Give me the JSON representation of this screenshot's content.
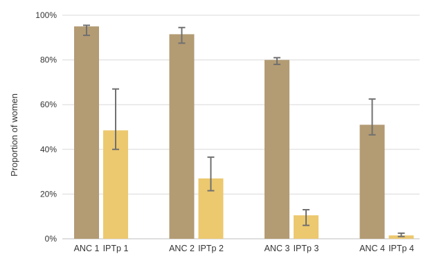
{
  "chart_data": {
    "type": "bar",
    "title": "",
    "xlabel": "",
    "ylabel": "Proportion of women",
    "ylim": [
      0,
      100
    ],
    "yticks": [
      0,
      20,
      40,
      60,
      80,
      100
    ],
    "ytick_labels": [
      "0%",
      "20%",
      "40%",
      "60%",
      "80%",
      "100%"
    ],
    "grid": true,
    "legend": "none",
    "bars": [
      {
        "label": "ANC 1",
        "value": 95,
        "err_low": 91,
        "err_high": 95.5,
        "color": "#b39b73"
      },
      {
        "label": "IPTp 1",
        "value": 48.5,
        "err_low": 40,
        "err_high": 67,
        "color": "#ecc86f"
      },
      {
        "label": "ANC 2",
        "value": 91.5,
        "err_low": 87.5,
        "err_high": 94.5,
        "color": "#b39b73"
      },
      {
        "label": "IPTp 2",
        "value": 27,
        "err_low": 21.5,
        "err_high": 36.5,
        "color": "#ecc86f"
      },
      {
        "label": "ANC 3",
        "value": 80,
        "err_low": 78,
        "err_high": 81,
        "color": "#b39b73"
      },
      {
        "label": "IPTp 3",
        "value": 10.5,
        "err_low": 6,
        "err_high": 13,
        "color": "#ecc86f"
      },
      {
        "label": "ANC 4",
        "value": 51,
        "err_low": 46.5,
        "err_high": 62.5,
        "color": "#b39b73"
      },
      {
        "label": "IPTp 4",
        "value": 1.5,
        "err_low": 1,
        "err_high": 2.5,
        "color": "#ecc86f"
      }
    ],
    "colors": {
      "anc": "#b39b73",
      "iptp": "#ecc86f",
      "error_bar": "#707070",
      "grid": "#d9d9d9"
    }
  }
}
